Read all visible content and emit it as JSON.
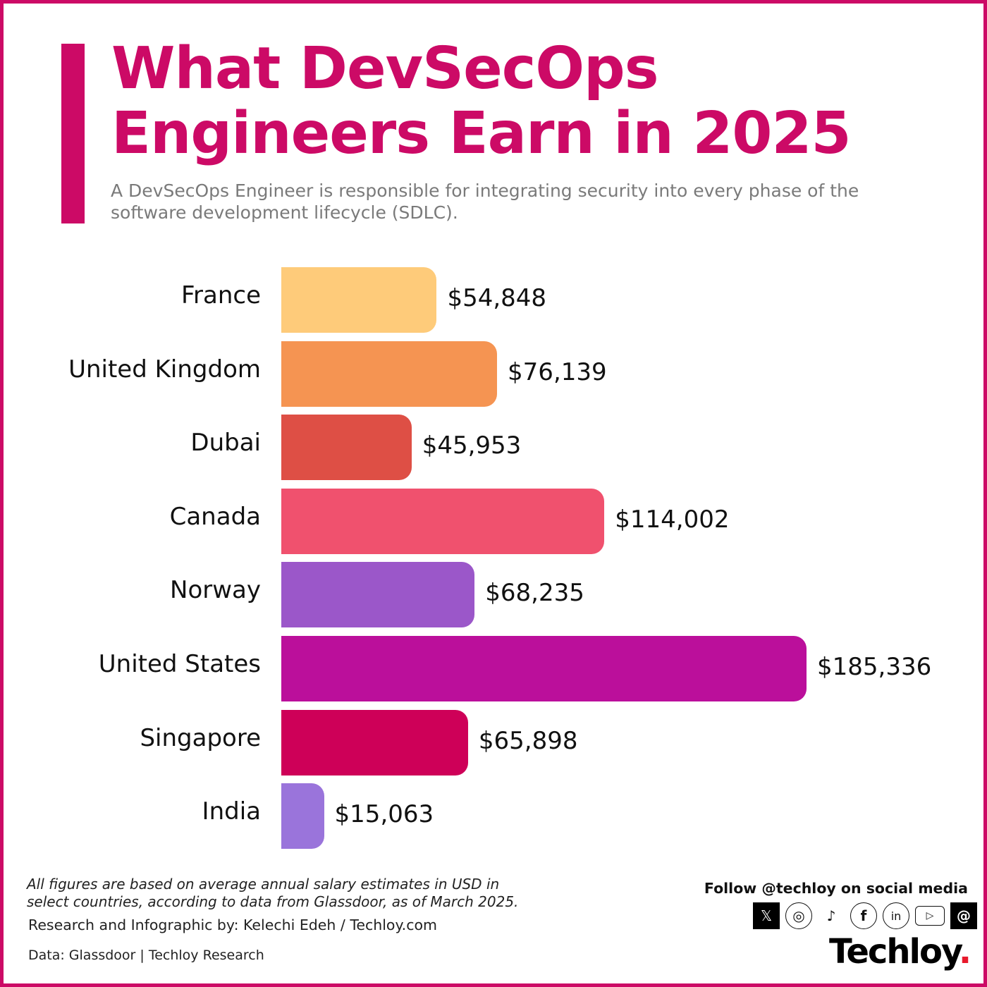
{
  "header": {
    "title_line1": "What DevSecOps",
    "title_line2": "Engineers Earn in 2025",
    "subtitle": "A DevSecOps Engineer is responsible for integrating security into every phase of the software development lifecycle (SDLC)."
  },
  "chart_data": {
    "type": "bar",
    "orientation": "horizontal",
    "categories": [
      "France",
      "United Kingdom",
      "Dubai",
      "Canada",
      "Norway",
      "United States",
      "Singapore",
      "India"
    ],
    "values": [
      54848,
      76139,
      45953,
      114002,
      68235,
      185336,
      65898,
      15063
    ],
    "data_labels": [
      "$54,848",
      "$76,139",
      "$45,953",
      "$114,002",
      "$68,235",
      "$185,336",
      "$65,898",
      "$15,063"
    ],
    "colors": [
      "#fecb7a",
      "#f59452",
      "#de4f45",
      "#f0516e",
      "#9b57c9",
      "#bb0f9b",
      "#ce0058",
      "#9a74db"
    ],
    "grid": false,
    "title": "",
    "xlabel": "",
    "ylabel": ""
  },
  "footer": {
    "note": "All figures are based on average annual salary estimates in USD in select countries, according to data from Glassdoor, as of March 2025.",
    "credit": "Research and Infographic by: Kelechi Edeh / Techloy.com",
    "source": "Data: Glassdoor | Techloy Research",
    "follow": "Follow @techloy on social media",
    "social_icons": [
      "x-icon",
      "instagram-icon",
      "tiktok-icon",
      "facebook-icon",
      "linkedin-icon",
      "youtube-icon",
      "threads-icon"
    ],
    "logo": "Techloy",
    "logo_dot": "."
  },
  "accent_color": "#cc0a66"
}
